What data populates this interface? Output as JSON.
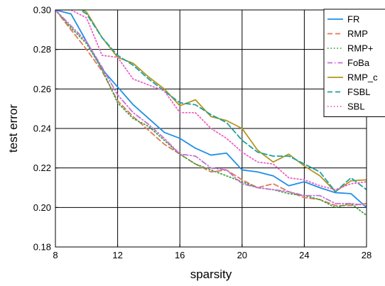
{
  "chart_data": {
    "type": "line",
    "xlabel": "sparsity",
    "ylabel": "test error",
    "xlim": [
      8,
      28
    ],
    "ylim": [
      0.18,
      0.3
    ],
    "xticks": [
      "8",
      "12",
      "16",
      "20",
      "24",
      "28"
    ],
    "yticks": [
      "0.18",
      "0.20",
      "0.22",
      "0.24",
      "0.26",
      "0.28",
      "0.30"
    ],
    "grid": true,
    "legend_position": "top-right",
    "x": [
      8,
      9,
      10,
      11,
      12,
      13,
      14,
      15,
      16,
      17,
      18,
      19,
      20,
      21,
      22,
      23,
      24,
      25,
      26,
      27,
      28
    ],
    "series": [
      {
        "name": "FR",
        "color": "#1f8fe6",
        "dash": "solid",
        "values": [
          0.3,
          0.298,
          0.284,
          0.27,
          0.261,
          0.252,
          0.245,
          0.238,
          0.235,
          0.23,
          0.2265,
          0.2275,
          0.219,
          0.218,
          0.216,
          0.211,
          0.213,
          0.21,
          0.2075,
          0.207,
          0.2
        ]
      },
      {
        "name": "RMP",
        "color": "#e0785a",
        "dash": "dashed",
        "values": [
          0.3,
          0.29,
          0.28,
          0.269,
          0.254,
          0.246,
          0.239,
          0.232,
          0.227,
          0.222,
          0.218,
          0.219,
          0.214,
          0.21,
          0.212,
          0.208,
          0.205,
          0.204,
          0.201,
          0.201,
          0.202
        ]
      },
      {
        "name": "RMP+",
        "color": "#3aa23a",
        "dash": "dotted",
        "values": [
          0.3,
          0.291,
          0.283,
          0.27,
          0.253,
          0.245,
          0.241,
          0.234,
          0.227,
          0.222,
          0.219,
          0.216,
          0.213,
          0.21,
          0.209,
          0.207,
          0.206,
          0.204,
          0.2,
          0.202,
          0.196
        ]
      },
      {
        "name": "FoBa",
        "color": "#c56fd8",
        "dash": "dashdot",
        "values": [
          0.3,
          0.292,
          0.284,
          0.271,
          0.257,
          0.248,
          0.242,
          0.235,
          0.227,
          0.226,
          0.22,
          0.219,
          0.212,
          0.21,
          0.209,
          0.208,
          0.206,
          0.206,
          0.202,
          0.202,
          0.201
        ]
      },
      {
        "name": "RMP_c",
        "color": "#b4951f",
        "dash": "solid",
        "values": [
          0.307,
          0.303,
          0.299,
          0.286,
          0.276,
          0.273,
          0.266,
          0.26,
          0.2515,
          0.2545,
          0.246,
          0.244,
          0.24,
          0.229,
          0.223,
          0.227,
          0.221,
          0.216,
          0.208,
          0.2135,
          0.214
        ]
      },
      {
        "name": "FSBL",
        "color": "#1aa2a2",
        "dash": "dashed",
        "values": [
          0.307,
          0.303,
          0.298,
          0.286,
          0.277,
          0.272,
          0.265,
          0.259,
          0.253,
          0.252,
          0.247,
          0.243,
          0.234,
          0.228,
          0.226,
          0.226,
          0.222,
          0.218,
          0.208,
          0.215,
          0.209
        ]
      },
      {
        "name": "SBL",
        "color": "#ec5fc6",
        "dash": "dotted",
        "values": [
          0.3,
          0.3,
          0.296,
          0.277,
          0.276,
          0.265,
          0.262,
          0.259,
          0.248,
          0.248,
          0.24,
          0.235,
          0.228,
          0.223,
          0.222,
          0.215,
          0.214,
          0.211,
          0.209,
          0.212,
          0.213
        ]
      }
    ]
  }
}
